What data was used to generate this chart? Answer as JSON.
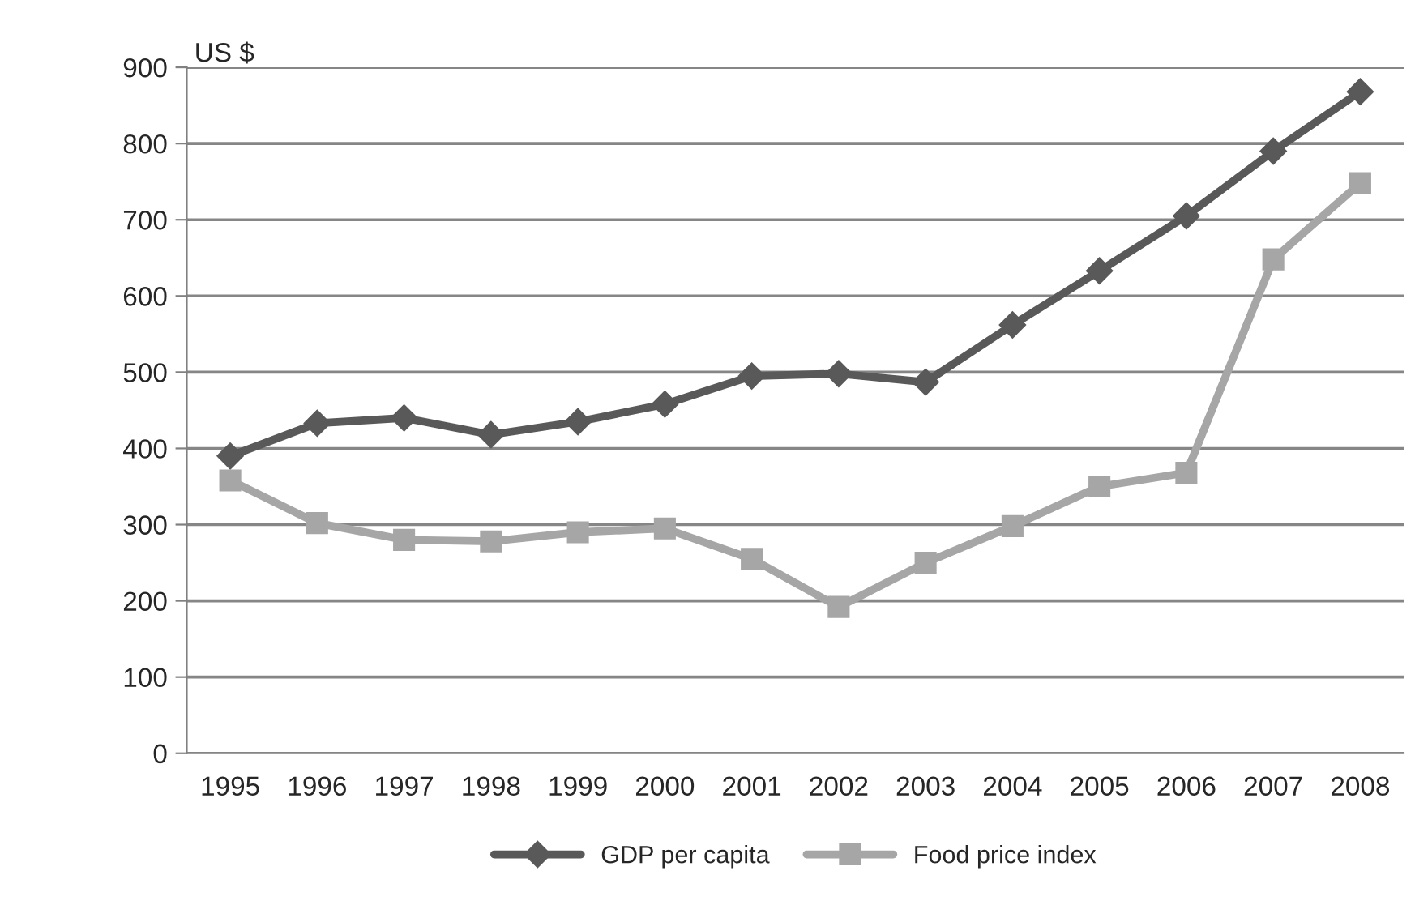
{
  "chart_data": {
    "type": "line",
    "ylabel": "US $",
    "categories": [
      "1995",
      "1996",
      "1997",
      "1998",
      "1999",
      "2000",
      "2001",
      "2002",
      "2003",
      "2004",
      "2005",
      "2006",
      "2007",
      "2008"
    ],
    "series": [
      {
        "name": "GDP per capita",
        "color": "#595959",
        "marker": "diamond",
        "values": [
          390,
          433,
          440,
          418,
          435,
          458,
          495,
          498,
          487,
          562,
          633,
          705,
          790,
          868
        ]
      },
      {
        "name": "Food price index",
        "color": "#a6a6a6",
        "marker": "square",
        "values": [
          358,
          302,
          280,
          278,
          290,
          295,
          255,
          192,
          250,
          298,
          350,
          368,
          648,
          748
        ]
      }
    ],
    "ylim": [
      0,
      900
    ],
    "yticks": [
      0,
      100,
      200,
      300,
      400,
      500,
      600,
      700,
      800,
      900
    ],
    "grid": "y",
    "legend": "bottom",
    "line_style": "solid"
  }
}
